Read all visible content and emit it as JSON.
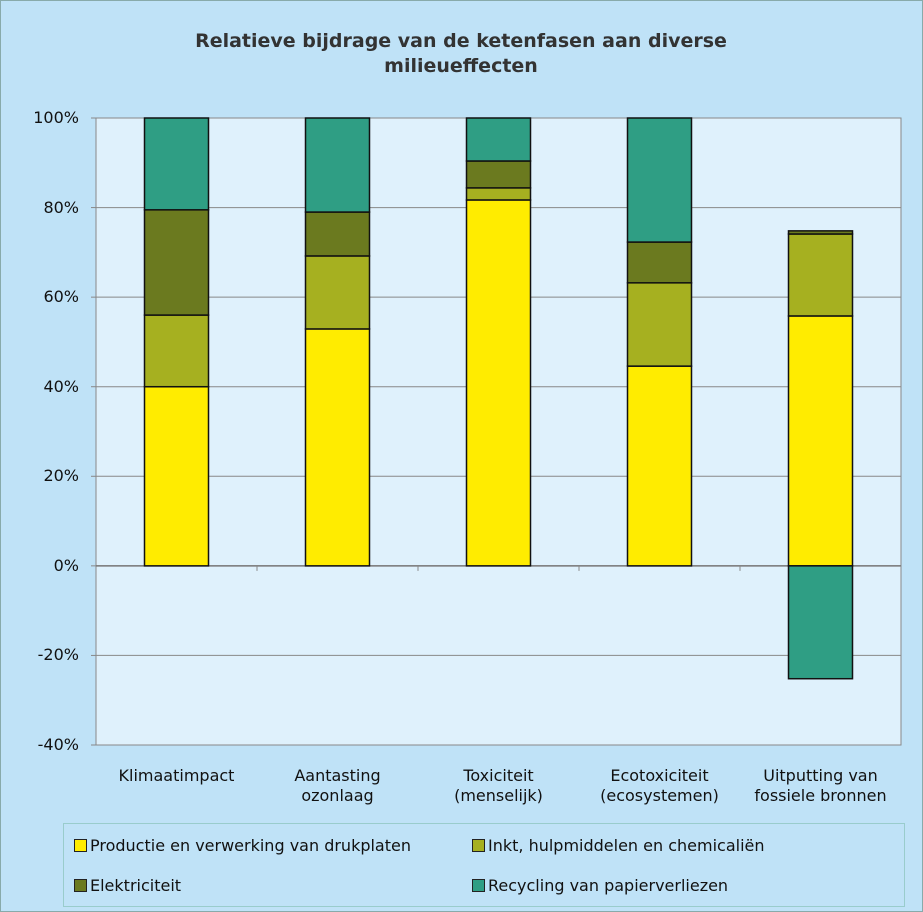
{
  "chart_data": {
    "type": "stacked_bar",
    "title": "Relatieve bijdrage van de ketenfasen aan diverse milieueffecten",
    "categories": [
      "Klimaatimpact",
      "Aantasting ozonlaag",
      "Toxiciteit (menselijk)",
      "Ecotoxiciteit (ecosystemen)",
      "Uitputting van fossiele bronnen"
    ],
    "series": [
      {
        "name": "Productie en verwerking van drukplaten",
        "color": "#ffec00",
        "values": [
          40.0,
          52.9,
          81.7,
          44.6,
          55.8
        ]
      },
      {
        "name": "Inkt, hulpmiddelen en chemicaliën",
        "color": "#a6b020",
        "values": [
          16.0,
          16.3,
          2.7,
          18.6,
          18.3
        ]
      },
      {
        "name": "Elektriciteit",
        "color": "#6b7a1f",
        "values": [
          23.5,
          9.8,
          6.0,
          9.1,
          0.7
        ]
      },
      {
        "name": "Recycling van papierverliezen",
        "color": "#2f9e84",
        "values": [
          20.5,
          21.0,
          9.6,
          27.7,
          -25.2
        ]
      }
    ],
    "ylim": [
      -40,
      100
    ],
    "yticks": [
      {
        "value": -40,
        "label": "-40%"
      },
      {
        "value": -20,
        "label": "-20%"
      },
      {
        "value": 0,
        "label": "0%"
      },
      {
        "value": 20,
        "label": "20%"
      },
      {
        "value": 40,
        "label": "40%"
      },
      {
        "value": 60,
        "label": "60%"
      },
      {
        "value": 80,
        "label": "80%"
      },
      {
        "value": 100,
        "label": "100%"
      }
    ],
    "grid": true
  }
}
